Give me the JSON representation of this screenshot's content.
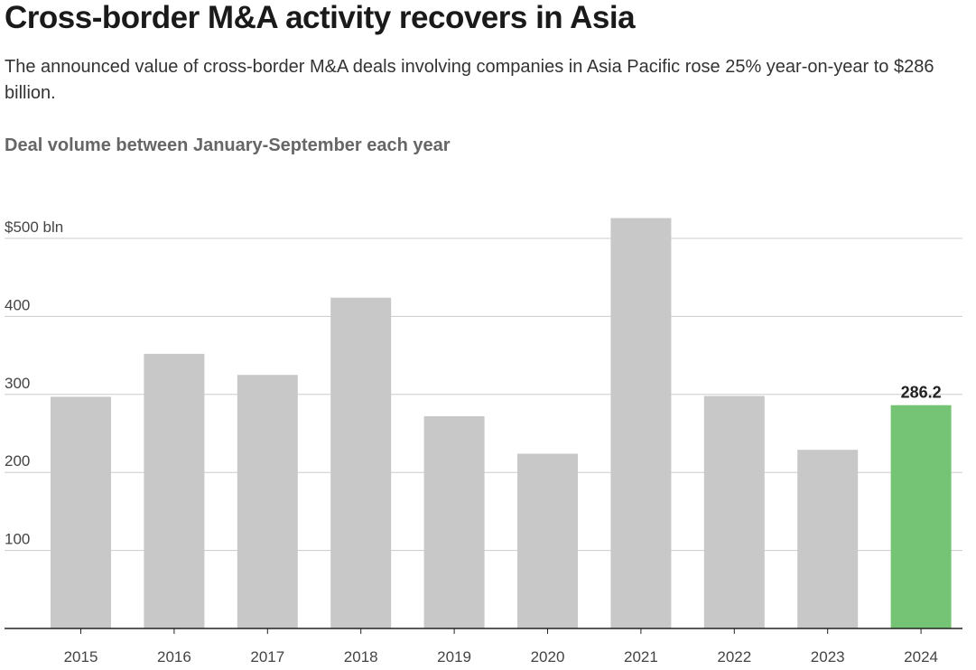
{
  "header": {
    "title": "Cross-border M&A activity recovers in Asia",
    "subtitle": "The announced value of cross-border M&A deals involving companies in Asia Pacific rose 25% year-on-year to $286 billion.",
    "chart_heading": "Deal volume between January-September each year"
  },
  "chart_data": {
    "type": "bar",
    "title": "Cross-border M&A activity recovers in Asia",
    "subtitle": "Deal volume between January-September each year",
    "categories": [
      "2015",
      "2016",
      "2017",
      "2018",
      "2019",
      "2020",
      "2021",
      "2022",
      "2023",
      "2024"
    ],
    "values": [
      297,
      352,
      325,
      424,
      272,
      224,
      526,
      298,
      229,
      286.2
    ],
    "xlabel": "",
    "ylabel": "",
    "ylim": [
      0,
      500
    ],
    "yticks": [
      100,
      200,
      300,
      400,
      500
    ],
    "ytick_labels": [
      "100",
      "200",
      "300",
      "400",
      "$500 bln"
    ],
    "grid": true,
    "highlight": {
      "category": "2024",
      "label": "286.2"
    },
    "colors": {
      "bar": "#c8c8c8",
      "highlight": "#75c375",
      "grid": "#cccccc",
      "axis": "#222222"
    }
  }
}
